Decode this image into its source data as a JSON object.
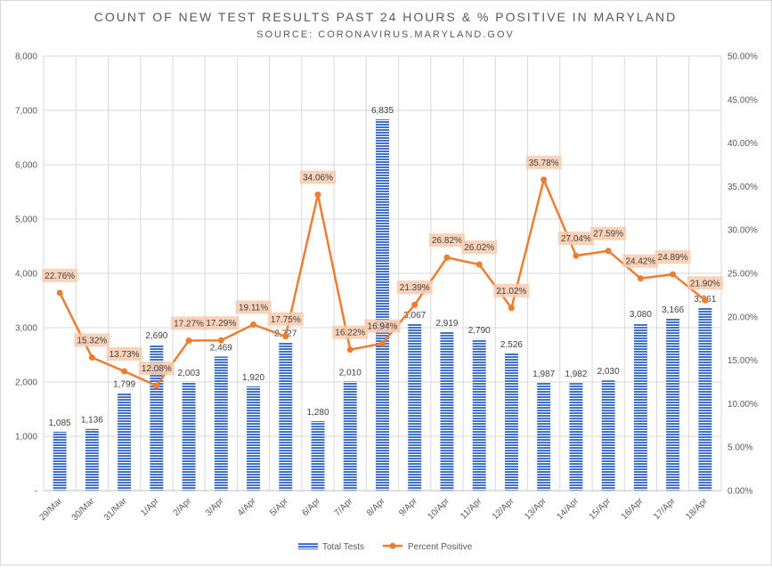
{
  "chart_data": {
    "type": "bar",
    "title": "COUNT OF NEW TEST RESULTS PAST 24 HOURS & % POSITIVE IN MARYLAND",
    "subtitle": "SOURCE: CORONAVIRUS.MARYLAND.GOV",
    "categories": [
      "29/Mar",
      "30/Mar",
      "31/Mar",
      "1/Apr",
      "2/Apr",
      "3/Apr",
      "4/Apr",
      "5/Apr",
      "6/Apr",
      "7/Apr",
      "8/Apr",
      "9/Apr",
      "10/Apr",
      "11/Apr",
      "12/Apr",
      "13/Apr",
      "14/Apr",
      "15/Apr",
      "16/Apr",
      "17/Apr",
      "18/Apr"
    ],
    "series": [
      {
        "name": "Total Tests",
        "type": "bar",
        "axis": "left",
        "color": "#4472C4",
        "values": [
          1085,
          1136,
          1799,
          2690,
          2003,
          2469,
          1920,
          2727,
          1280,
          2010,
          6835,
          3067,
          2919,
          2790,
          2526,
          1987,
          1982,
          2030,
          3080,
          3166,
          3361
        ],
        "labels": [
          "1,085",
          "1,136",
          "1,799",
          "2,690",
          "2,003",
          "2,469",
          "1,920",
          "2,727",
          "1,280",
          "2,010",
          "6,835",
          "3,067",
          "2,919",
          "2,790",
          "2,526",
          "1,987",
          "1,982",
          "2,030",
          "3,080",
          "3,166",
          "3,361"
        ]
      },
      {
        "name": "Percent Positive",
        "type": "line",
        "axis": "right",
        "color": "#ED7D31",
        "values": [
          22.76,
          15.32,
          13.73,
          12.08,
          17.27,
          17.29,
          19.11,
          17.75,
          34.06,
          16.22,
          16.94,
          21.39,
          26.82,
          26.02,
          21.02,
          35.78,
          27.04,
          27.59,
          24.42,
          24.89,
          21.9
        ],
        "labels": [
          "22.76%",
          "15.32%",
          "13.73%",
          "12.08%",
          "17.27%",
          "17.29%",
          "19.11%",
          "17.75%",
          "34.06%",
          "16.22%",
          "16.94%",
          "21.39%",
          "26.82%",
          "26.02%",
          "21.02%",
          "35.78%",
          "27.04%",
          "27.59%",
          "24.42%",
          "24.89%",
          "21.90%"
        ]
      }
    ],
    "ylim_left": [
      0,
      8000
    ],
    "ylim_right": [
      0,
      50
    ],
    "left_ticks": [
      "-",
      "1,000",
      "2,000",
      "3,000",
      "4,000",
      "5,000",
      "6,000",
      "7,000",
      "8,000"
    ],
    "right_ticks": [
      "0.00%",
      "5.00%",
      "10.00%",
      "15.00%",
      "20.00%",
      "25.00%",
      "30.00%",
      "35.00%",
      "40.00%",
      "45.00%",
      "50.00%"
    ],
    "grid": true,
    "legend_position": "bottom",
    "legend": [
      "Total Tests",
      "Percent Positive"
    ],
    "colors": {
      "bar": "#4472C4",
      "line": "#ED7D31",
      "label_bg": "#F8CBAD",
      "grid": "#d9d9d9"
    }
  }
}
